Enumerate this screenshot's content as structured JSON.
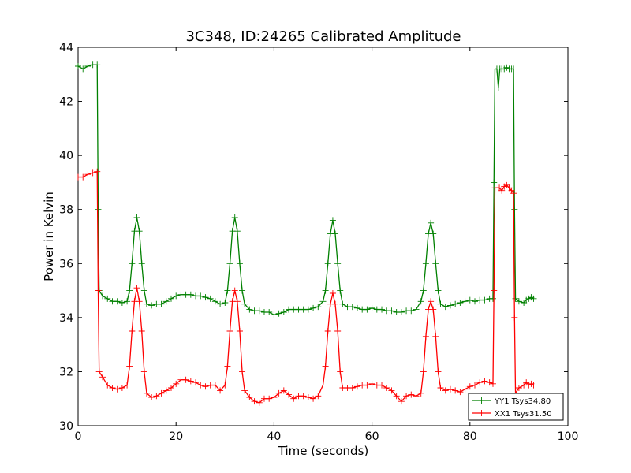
{
  "chart_data": {
    "type": "line",
    "title": "3C348, ID:24265 Calibrated Amplitude",
    "xlabel": "Time (seconds)",
    "ylabel": "Power in Kelvin",
    "xlim": [
      0,
      100
    ],
    "ylim": [
      30,
      44
    ],
    "xticks": [
      0,
      20,
      40,
      60,
      80,
      100
    ],
    "yticks": [
      30,
      32,
      34,
      36,
      38,
      40,
      42,
      44
    ],
    "grid": false,
    "legend_position": "lower-right",
    "marker": "plus",
    "series": [
      {
        "name": "YY1 Tsys34.80",
        "color": "#008000",
        "points": [
          [
            0,
            43.3
          ],
          [
            1,
            43.2
          ],
          [
            2,
            43.3
          ],
          [
            3,
            43.35
          ],
          [
            3.9,
            43.35
          ],
          [
            4.1,
            38.0
          ],
          [
            4.3,
            35.0
          ],
          [
            5,
            34.8
          ],
          [
            6,
            34.7
          ],
          [
            7,
            34.6
          ],
          [
            8,
            34.6
          ],
          [
            9,
            34.55
          ],
          [
            10,
            34.6
          ],
          [
            10.5,
            35.0
          ],
          [
            11,
            36.0
          ],
          [
            11.5,
            37.2
          ],
          [
            12,
            37.7
          ],
          [
            12.5,
            37.2
          ],
          [
            13,
            36.0
          ],
          [
            13.5,
            35.0
          ],
          [
            14,
            34.5
          ],
          [
            15,
            34.45
          ],
          [
            16,
            34.5
          ],
          [
            17,
            34.5
          ],
          [
            18,
            34.6
          ],
          [
            19,
            34.7
          ],
          [
            20,
            34.8
          ],
          [
            21,
            34.85
          ],
          [
            22,
            34.85
          ],
          [
            23,
            34.85
          ],
          [
            24,
            34.8
          ],
          [
            25,
            34.8
          ],
          [
            26,
            34.75
          ],
          [
            27,
            34.7
          ],
          [
            28,
            34.6
          ],
          [
            29,
            34.5
          ],
          [
            30,
            34.55
          ],
          [
            30.5,
            35.0
          ],
          [
            31,
            36.0
          ],
          [
            31.5,
            37.2
          ],
          [
            32,
            37.7
          ],
          [
            32.5,
            37.2
          ],
          [
            33,
            36.0
          ],
          [
            33.5,
            35.0
          ],
          [
            34,
            34.5
          ],
          [
            35,
            34.3
          ],
          [
            36,
            34.25
          ],
          [
            37,
            34.25
          ],
          [
            38,
            34.2
          ],
          [
            39,
            34.2
          ],
          [
            40,
            34.1
          ],
          [
            41,
            34.15
          ],
          [
            42,
            34.2
          ],
          [
            43,
            34.3
          ],
          [
            44,
            34.3
          ],
          [
            45,
            34.3
          ],
          [
            46,
            34.3
          ],
          [
            47,
            34.3
          ],
          [
            48,
            34.35
          ],
          [
            49,
            34.4
          ],
          [
            50,
            34.6
          ],
          [
            50.5,
            35.0
          ],
          [
            51,
            36.0
          ],
          [
            51.5,
            37.1
          ],
          [
            52,
            37.6
          ],
          [
            52.5,
            37.1
          ],
          [
            53,
            36.0
          ],
          [
            53.5,
            35.0
          ],
          [
            54,
            34.5
          ],
          [
            55,
            34.4
          ],
          [
            56,
            34.4
          ],
          [
            57,
            34.35
          ],
          [
            58,
            34.3
          ],
          [
            59,
            34.3
          ],
          [
            60,
            34.35
          ],
          [
            61,
            34.3
          ],
          [
            62,
            34.3
          ],
          [
            63,
            34.25
          ],
          [
            64,
            34.25
          ],
          [
            65,
            34.2
          ],
          [
            66,
            34.2
          ],
          [
            67,
            34.25
          ],
          [
            68,
            34.25
          ],
          [
            69,
            34.3
          ],
          [
            70,
            34.6
          ],
          [
            70.5,
            35.0
          ],
          [
            71,
            36.0
          ],
          [
            71.5,
            37.1
          ],
          [
            72,
            37.5
          ],
          [
            72.5,
            37.1
          ],
          [
            73,
            36.0
          ],
          [
            73.5,
            35.0
          ],
          [
            74,
            34.5
          ],
          [
            75,
            34.4
          ],
          [
            76,
            34.45
          ],
          [
            77,
            34.5
          ],
          [
            78,
            34.55
          ],
          [
            79,
            34.6
          ],
          [
            80,
            34.65
          ],
          [
            81,
            34.6
          ],
          [
            82,
            34.65
          ],
          [
            83,
            34.65
          ],
          [
            84,
            34.7
          ],
          [
            84.7,
            34.7
          ],
          [
            84.9,
            39.0
          ],
          [
            85.1,
            43.2
          ],
          [
            85.5,
            43.2
          ],
          [
            85.8,
            42.5
          ],
          [
            86.1,
            43.2
          ],
          [
            86.5,
            43.2
          ],
          [
            87,
            43.2
          ],
          [
            87.5,
            43.25
          ],
          [
            88,
            43.2
          ],
          [
            88.5,
            43.2
          ],
          [
            88.9,
            43.2
          ],
          [
            89.1,
            38.0
          ],
          [
            89.3,
            34.7
          ],
          [
            90,
            34.6
          ],
          [
            91,
            34.55
          ],
          [
            91.5,
            34.65
          ],
          [
            92,
            34.7
          ],
          [
            92.5,
            34.75
          ],
          [
            93,
            34.7
          ]
        ]
      },
      {
        "name": "XX1 Tsys31.50",
        "color": "#ff0000",
        "points": [
          [
            0,
            39.2
          ],
          [
            1,
            39.2
          ],
          [
            2,
            39.3
          ],
          [
            3,
            39.35
          ],
          [
            3.9,
            39.4
          ],
          [
            4.1,
            35.0
          ],
          [
            4.3,
            32.0
          ],
          [
            5,
            31.8
          ],
          [
            6,
            31.5
          ],
          [
            7,
            31.4
          ],
          [
            8,
            31.35
          ],
          [
            9,
            31.4
          ],
          [
            10,
            31.5
          ],
          [
            10.5,
            32.2
          ],
          [
            11,
            33.5
          ],
          [
            11.5,
            34.6
          ],
          [
            12,
            35.1
          ],
          [
            12.5,
            34.6
          ],
          [
            13,
            33.5
          ],
          [
            13.5,
            32.0
          ],
          [
            14,
            31.2
          ],
          [
            15,
            31.05
          ],
          [
            16,
            31.1
          ],
          [
            17,
            31.2
          ],
          [
            18,
            31.3
          ],
          [
            19,
            31.4
          ],
          [
            20,
            31.55
          ],
          [
            21,
            31.7
          ],
          [
            22,
            31.7
          ],
          [
            23,
            31.65
          ],
          [
            24,
            31.6
          ],
          [
            25,
            31.5
          ],
          [
            26,
            31.45
          ],
          [
            27,
            31.5
          ],
          [
            28,
            31.5
          ],
          [
            29,
            31.3
          ],
          [
            30,
            31.5
          ],
          [
            30.5,
            32.2
          ],
          [
            31,
            33.5
          ],
          [
            31.5,
            34.6
          ],
          [
            32,
            35.0
          ],
          [
            32.5,
            34.6
          ],
          [
            33,
            33.5
          ],
          [
            33.5,
            32.0
          ],
          [
            34,
            31.3
          ],
          [
            35,
            31.05
          ],
          [
            36,
            30.9
          ],
          [
            37,
            30.85
          ],
          [
            38,
            31.0
          ],
          [
            39,
            31.0
          ],
          [
            40,
            31.05
          ],
          [
            41,
            31.2
          ],
          [
            42,
            31.3
          ],
          [
            43,
            31.15
          ],
          [
            44,
            31.0
          ],
          [
            45,
            31.1
          ],
          [
            46,
            31.1
          ],
          [
            47,
            31.05
          ],
          [
            48,
            31.0
          ],
          [
            49,
            31.1
          ],
          [
            50,
            31.5
          ],
          [
            50.5,
            32.2
          ],
          [
            51,
            33.5
          ],
          [
            51.5,
            34.5
          ],
          [
            52,
            34.9
          ],
          [
            52.5,
            34.5
          ],
          [
            53,
            33.5
          ],
          [
            53.5,
            32.0
          ],
          [
            54,
            31.4
          ],
          [
            55,
            31.4
          ],
          [
            56,
            31.4
          ],
          [
            57,
            31.45
          ],
          [
            58,
            31.5
          ],
          [
            59,
            31.5
          ],
          [
            60,
            31.55
          ],
          [
            61,
            31.5
          ],
          [
            62,
            31.5
          ],
          [
            63,
            31.4
          ],
          [
            64,
            31.3
          ],
          [
            65,
            31.1
          ],
          [
            66,
            30.9
          ],
          [
            67,
            31.1
          ],
          [
            68,
            31.15
          ],
          [
            69,
            31.1
          ],
          [
            70,
            31.2
          ],
          [
            70.5,
            32.0
          ],
          [
            71,
            33.3
          ],
          [
            71.5,
            34.3
          ],
          [
            72,
            34.6
          ],
          [
            72.5,
            34.3
          ],
          [
            73,
            33.3
          ],
          [
            73.5,
            32.0
          ],
          [
            74,
            31.4
          ],
          [
            75,
            31.3
          ],
          [
            76,
            31.35
          ],
          [
            77,
            31.3
          ],
          [
            78,
            31.25
          ],
          [
            79,
            31.35
          ],
          [
            80,
            31.45
          ],
          [
            81,
            31.5
          ],
          [
            82,
            31.6
          ],
          [
            83,
            31.65
          ],
          [
            84,
            31.6
          ],
          [
            84.7,
            31.55
          ],
          [
            84.9,
            35.0
          ],
          [
            85.1,
            38.8
          ],
          [
            86,
            38.8
          ],
          [
            86.5,
            38.7
          ],
          [
            87,
            38.85
          ],
          [
            87.5,
            38.9
          ],
          [
            88,
            38.8
          ],
          [
            88.5,
            38.7
          ],
          [
            88.9,
            38.6
          ],
          [
            89.1,
            34.0
          ],
          [
            89.3,
            31.2
          ],
          [
            90,
            31.4
          ],
          [
            91,
            31.5
          ],
          [
            91.5,
            31.6
          ],
          [
            92,
            31.5
          ],
          [
            92.5,
            31.55
          ],
          [
            93,
            31.5
          ]
        ]
      }
    ]
  }
}
